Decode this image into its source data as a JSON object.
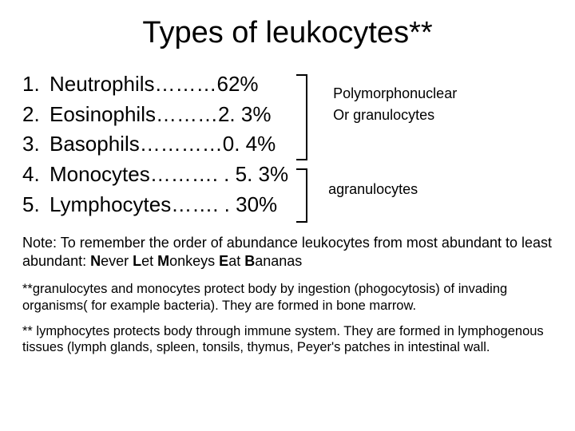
{
  "title": "Types of leukocytes**",
  "list": [
    {
      "n": "1.",
      "text": "Neutrophils………62%"
    },
    {
      "n": "2.",
      "text": "Eosinophils………2. 3%"
    },
    {
      "n": "3.",
      "text": "Basophils…………0. 4%"
    },
    {
      "n": "4.",
      "text": "Monocytes………. . 5. 3%"
    },
    {
      "n": "5.",
      "text": "Lymphocytes……. . 30%"
    }
  ],
  "group_top": {
    "line1": "Polymorphonuclear",
    "line2": "Or granulocytes"
  },
  "group_bottom": "agranulocytes",
  "note_html": "Note: To remember the order of abundance leukocytes from most abundant to least abundant: <b>N</b>ever <b>L</b>et <b>M</b>onkeys <b>E</b>at <b>B</b>ananas",
  "footnote1": "**granulocytes and monocytes protect body by ingestion (phogocytosis) of invading organisms( for example bacteria). They are formed in bone marrow.",
  "footnote2": "** lymphocytes protects body through immune system.  They are formed in lymphogenous tissues (lymph glands, spleen, tonsils, thymus, Peyer's patches in intestinal wall."
}
